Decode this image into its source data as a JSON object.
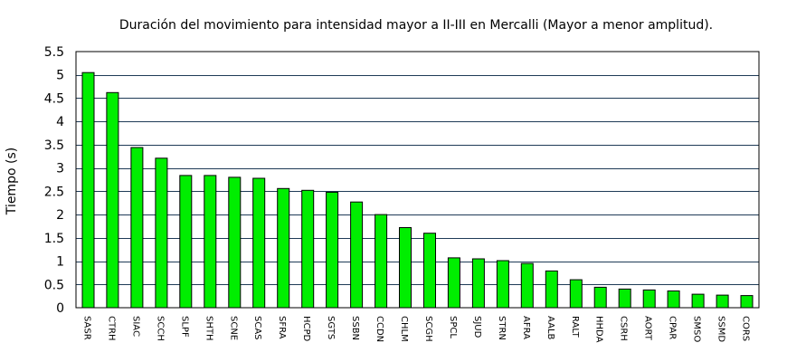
{
  "chart_data": {
    "type": "bar",
    "title": "Duración del movimiento para intensidad mayor a II-III en Mercalli (Mayor a menor amplitud).",
    "xlabel": "",
    "ylabel": "Tiempo (s)",
    "ylim": [
      0,
      5.5
    ],
    "yticks": [
      "0",
      "0.5",
      "1",
      "1.5",
      "2",
      "2.5",
      "3",
      "3.5",
      "4",
      "4.5",
      "5",
      "5.5"
    ],
    "grid": true,
    "colors": {
      "bar": "#00ee00",
      "grid": "#1f3b57"
    },
    "categories": [
      "SASR",
      "CTRH",
      "SIAC",
      "SCCH",
      "SLPF",
      "SHTH",
      "SCNE",
      "SCAS",
      "SFRA",
      "HCPD",
      "SGTS",
      "SSBN",
      "CCDN",
      "CHLM",
      "SCGH",
      "SPCL",
      "SJUD",
      "STRN",
      "AFRA",
      "AALB",
      "RALT",
      "HHDA",
      "CSRH",
      "AORT",
      "CPAR",
      "SMSO",
      "SSMD",
      "CORS"
    ],
    "values": [
      5.05,
      4.62,
      3.44,
      3.21,
      2.84,
      2.84,
      2.8,
      2.78,
      2.56,
      2.52,
      2.48,
      2.27,
      2.0,
      1.72,
      1.6,
      1.07,
      1.05,
      1.01,
      0.95,
      0.79,
      0.6,
      0.44,
      0.4,
      0.38,
      0.36,
      0.29,
      0.27,
      0.26
    ]
  }
}
